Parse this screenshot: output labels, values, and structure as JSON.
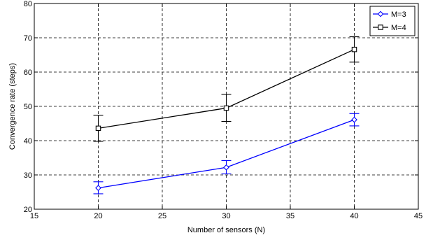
{
  "chart_data": {
    "type": "line",
    "title": "",
    "xlabel": "Number of sensors (N)",
    "ylabel": "Convergence rate (steps)",
    "xlim": [
      15,
      45
    ],
    "ylim": [
      20,
      80
    ],
    "xticks": [
      15,
      20,
      25,
      30,
      35,
      40,
      45
    ],
    "yticks": [
      20,
      30,
      40,
      50,
      60,
      70,
      80
    ],
    "grid": true,
    "legend_position": "top-right",
    "series": [
      {
        "name": "M=3",
        "color": "#0000ff",
        "marker": "diamond",
        "x": [
          20,
          30,
          40
        ],
        "y": [
          26.2,
          32.2,
          46.1
        ],
        "err_low": [
          24.5,
          30.3,
          44.3
        ],
        "err_high": [
          28.0,
          34.2,
          47.9
        ]
      },
      {
        "name": "M=4",
        "color": "#000000",
        "marker": "square",
        "x": [
          20,
          30,
          40
        ],
        "y": [
          43.6,
          49.5,
          66.6
        ],
        "err_low": [
          39.8,
          45.6,
          62.9
        ],
        "err_high": [
          47.4,
          53.5,
          70.3
        ]
      }
    ]
  }
}
